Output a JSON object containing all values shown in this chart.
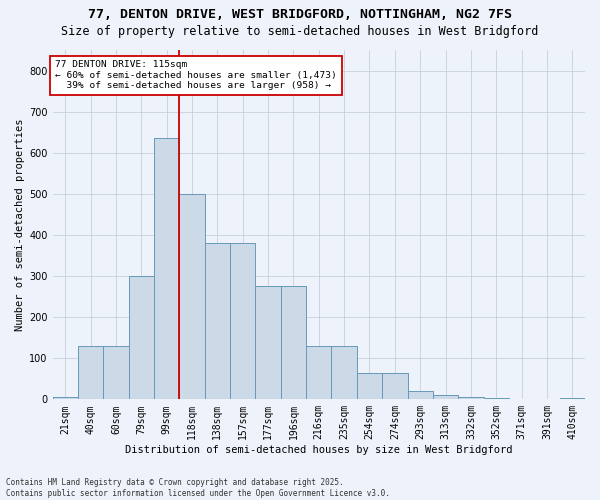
{
  "title1": "77, DENTON DRIVE, WEST BRIDGFORD, NOTTINGHAM, NG2 7FS",
  "title2": "Size of property relative to semi-detached houses in West Bridgford",
  "xlabel": "Distribution of semi-detached houses by size in West Bridgford",
  "ylabel": "Number of semi-detached properties",
  "categories": [
    "21sqm",
    "40sqm",
    "60sqm",
    "79sqm",
    "99sqm",
    "118sqm",
    "138sqm",
    "157sqm",
    "177sqm",
    "196sqm",
    "216sqm",
    "235sqm",
    "254sqm",
    "274sqm",
    "293sqm",
    "313sqm",
    "332sqm",
    "352sqm",
    "371sqm",
    "391sqm",
    "410sqm"
  ],
  "values": [
    5,
    130,
    130,
    300,
    635,
    500,
    380,
    380,
    275,
    275,
    130,
    130,
    65,
    65,
    20,
    10,
    5,
    3,
    0,
    0,
    3
  ],
  "bar_color": "#ccdae8",
  "bar_edge_color": "#6699bb",
  "vline_color": "#cc0000",
  "vline_index": 4.5,
  "annotation_title": "77 DENTON DRIVE: 115sqm",
  "annotation_line1": "← 60% of semi-detached houses are smaller (1,473)",
  "annotation_line2": "  39% of semi-detached houses are larger (958) →",
  "ylim_max": 850,
  "yticks": [
    0,
    100,
    200,
    300,
    400,
    500,
    600,
    700,
    800
  ],
  "footer1": "Contains HM Land Registry data © Crown copyright and database right 2025.",
  "footer2": "Contains public sector information licensed under the Open Government Licence v3.0.",
  "bg_color": "#eef2fa",
  "title1_fontsize": 9.5,
  "title2_fontsize": 8.5,
  "axis_fontsize": 7.5,
  "tick_fontsize": 7,
  "footer_fontsize": 5.5
}
